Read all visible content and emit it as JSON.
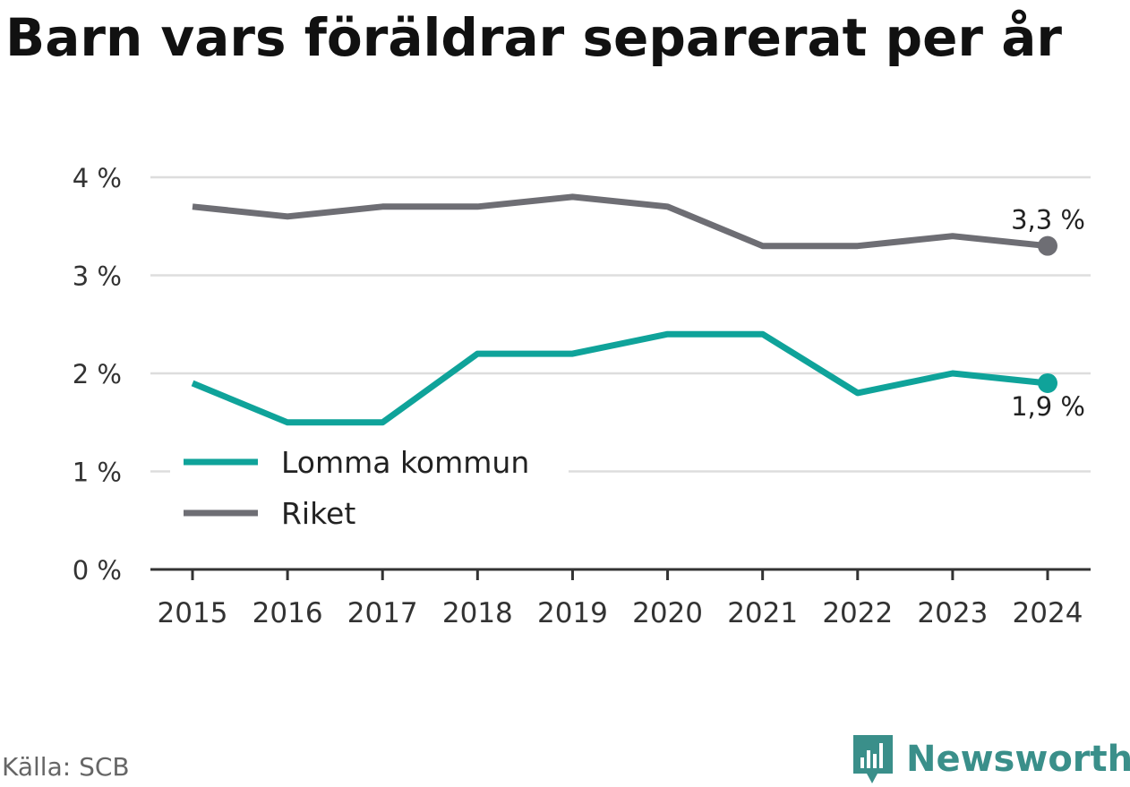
{
  "title": "Barn vars föräldrar separerat per år",
  "source": "Källa: SCB",
  "brand": {
    "name": "Newsworthy",
    "icon": "newsworthy-logo-icon",
    "color": "#3a8f8a"
  },
  "chart_data": {
    "type": "line",
    "title": "Barn vars föräldrar separerat per år",
    "x": [
      "2015",
      "2016",
      "2017",
      "2018",
      "2019",
      "2020",
      "2021",
      "2022",
      "2023",
      "2024"
    ],
    "series": [
      {
        "name": "Lomma kommun",
        "color": "#0fa39a",
        "values": [
          1.9,
          1.5,
          1.5,
          2.2,
          2.2,
          2.4,
          2.4,
          1.8,
          2.0,
          1.9
        ],
        "end_label": "1,9 %"
      },
      {
        "name": "Riket",
        "color": "#6e6e74",
        "values": [
          3.7,
          3.6,
          3.7,
          3.7,
          3.8,
          3.7,
          3.3,
          3.3,
          3.4,
          3.3
        ],
        "end_label": "3,3 %"
      }
    ],
    "yticks": [
      "0 %",
      "1 %",
      "2 %",
      "3 %",
      "4 %"
    ],
    "ylim": [
      0,
      4
    ],
    "grid": true,
    "legend": "bottom-left"
  }
}
